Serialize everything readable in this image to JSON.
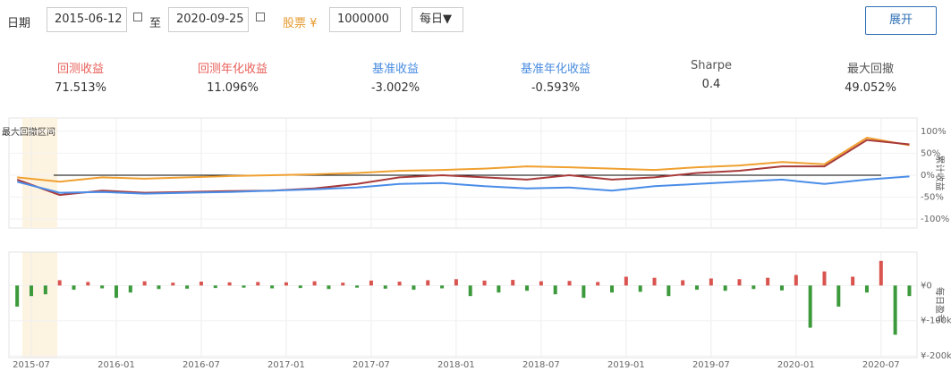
{
  "header": {
    "date_label": "日期",
    "start_date": "2015-06-12",
    "to": "至",
    "end_date": "2020-09-25",
    "capital_label": "股票 ¥",
    "capital": "1000000",
    "frequency": "每日▼",
    "expand": "展开"
  },
  "stats": [
    {
      "label": "回测收益",
      "value": "71.513%",
      "color": "#e8605a"
    },
    {
      "label": "回测年化收益",
      "value": "11.096%",
      "color": "#e8605a"
    },
    {
      "label": "基准收益",
      "value": "-3.002%",
      "color": "#4a8de0"
    },
    {
      "label": "基准年化收益",
      "value": "-0.593%",
      "color": "#4a8de0"
    },
    {
      "label": "Sharpe",
      "value": "0.4",
      "color": "#555555"
    },
    {
      "label": "最大回撤",
      "value": "49.052%",
      "color": "#555555"
    }
  ],
  "chart_data": [
    {
      "type": "line",
      "annotation": "最大回撤区间",
      "highlight_range": [
        "2015-06-12",
        "2015-08-26"
      ],
      "y_label": "累计收益",
      "baseline": 0,
      "x": [
        "2015-06",
        "2015-09",
        "2015-12",
        "2016-03",
        "2016-06",
        "2016-09",
        "2016-12",
        "2017-03",
        "2017-06",
        "2017-09",
        "2017-12",
        "2018-03",
        "2018-06",
        "2018-09",
        "2018-12",
        "2019-03",
        "2019-06",
        "2019-09",
        "2019-12",
        "2020-03",
        "2020-06",
        "2020-09"
      ],
      "series": [
        {
          "color": "#f0a030",
          "values": [
            -5,
            -15,
            -5,
            -8,
            -5,
            -2,
            0,
            2,
            5,
            10,
            12,
            15,
            20,
            18,
            15,
            12,
            18,
            22,
            30,
            25,
            85,
            68
          ]
        },
        {
          "color": "#a83a3a",
          "values": [
            -10,
            -45,
            -35,
            -40,
            -38,
            -36,
            -35,
            -30,
            -20,
            -5,
            0,
            -5,
            -10,
            0,
            -10,
            -5,
            5,
            10,
            20,
            20,
            80,
            70
          ]
        },
        {
          "color": "#4a8de8",
          "values": [
            -15,
            -40,
            -38,
            -42,
            -40,
            -38,
            -35,
            -32,
            -28,
            -20,
            -18,
            -25,
            -30,
            -28,
            -35,
            -25,
            -20,
            -15,
            -10,
            -20,
            -10,
            -3
          ]
        }
      ],
      "ylim": [
        -120,
        130
      ],
      "yticks": [
        {
          "value": 100,
          "label": "100%"
        },
        {
          "value": 50,
          "label": "50%"
        },
        {
          "value": 0,
          "label": "0%"
        },
        {
          "value": -50,
          "label": "-50%"
        },
        {
          "value": -100,
          "label": "-100%"
        }
      ]
    },
    {
      "type": "bar",
      "y_label": "每日盈亏",
      "up_color": "#d9534f",
      "down_color": "#3c9a3c",
      "x": [
        "2015-06",
        "2015-07",
        "2015-08",
        "2015-09",
        "2015-10",
        "2015-11",
        "2015-12",
        "2016-01",
        "2016-02",
        "2016-03",
        "2016-04",
        "2016-05",
        "2016-06",
        "2016-07",
        "2016-08",
        "2016-09",
        "2016-10",
        "2016-11",
        "2016-12",
        "2017-01",
        "2017-02",
        "2017-03",
        "2017-04",
        "2017-05",
        "2017-06",
        "2017-07",
        "2017-08",
        "2017-09",
        "2017-10",
        "2017-11",
        "2017-12",
        "2018-01",
        "2018-02",
        "2018-03",
        "2018-04",
        "2018-05",
        "2018-06",
        "2018-07",
        "2018-08",
        "2018-09",
        "2018-10",
        "2018-11",
        "2018-12",
        "2019-01",
        "2019-02",
        "2019-03",
        "2019-04",
        "2019-05",
        "2019-06",
        "2019-07",
        "2019-08",
        "2019-09",
        "2019-10",
        "2019-11",
        "2019-12",
        "2020-01",
        "2020-02",
        "2020-03",
        "2020-04",
        "2020-05",
        "2020-06",
        "2020-07",
        "2020-08",
        "2020-09"
      ],
      "values": [
        -60000,
        -30000,
        -25000,
        15000,
        -12000,
        10000,
        -8000,
        -35000,
        -20000,
        12000,
        -10000,
        8000,
        -9000,
        11000,
        -7000,
        9000,
        -6000,
        10000,
        -8000,
        9000,
        -7000,
        12000,
        -10000,
        8000,
        -6000,
        14000,
        -9000,
        11000,
        -12000,
        15000,
        -8000,
        18000,
        -30000,
        14000,
        -20000,
        16000,
        -15000,
        12000,
        -25000,
        13000,
        -35000,
        10000,
        -20000,
        25000,
        -18000,
        22000,
        -30000,
        15000,
        -12000,
        20000,
        -15000,
        18000,
        -10000,
        22000,
        -14000,
        30000,
        -120000,
        40000,
        -60000,
        25000,
        -20000,
        70000,
        -140000,
        -30000
      ],
      "ylim": [
        -205000,
        95000
      ],
      "yticks": [
        {
          "value": 0,
          "label": "¥0"
        },
        {
          "value": -100000,
          "label": "¥-100k"
        },
        {
          "value": -200000,
          "label": "¥-200k"
        }
      ],
      "xticks": [
        "2015-07",
        "2016-01",
        "2016-07",
        "2017-01",
        "2017-07",
        "2018-01",
        "2018-07",
        "2019-01",
        "2019-07",
        "2020-01",
        "2020-07"
      ]
    }
  ]
}
